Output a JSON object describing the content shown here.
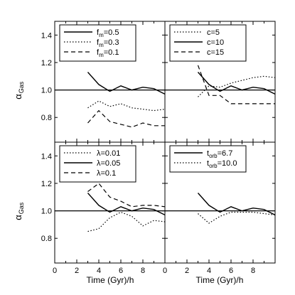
{
  "chart_data": {
    "type": "line",
    "shared_x_axis": {
      "label": "Time (Gyr)/h",
      "xlim": [
        0,
        10
      ],
      "ticks": [
        0,
        2,
        4,
        6,
        8
      ],
      "tick_labels": [
        "0",
        "2",
        "4",
        "6",
        "8"
      ]
    },
    "shared_y_axis": {
      "label_main": "α",
      "label_sub": "Gas",
      "ylim": [
        0.62,
        1.5
      ],
      "ticks": [
        0.8,
        1.0,
        1.2,
        1.4
      ],
      "tick_labels": [
        "0.8",
        "1.0",
        "1.2",
        "1.4"
      ]
    },
    "reference_line_y": 1.0,
    "panels": [
      {
        "position": "top-left",
        "series": [
          {
            "name": "f_m=0.5",
            "label_main": "f",
            "label_sub": "m",
            "label_rest": "=0.5",
            "style": "solid",
            "x": [
              3,
              4,
              5,
              6,
              7,
              8,
              9,
              10
            ],
            "y": [
              1.13,
              1.04,
              0.99,
              1.03,
              1.0,
              1.02,
              1.01,
              0.97
            ]
          },
          {
            "name": "f_m=0.3",
            "label_main": "f",
            "label_sub": "m",
            "label_rest": "=0.3",
            "style": "dotted",
            "x": [
              3,
              4,
              5,
              6,
              7,
              8,
              9,
              10
            ],
            "y": [
              0.87,
              0.92,
              0.88,
              0.9,
              0.87,
              0.86,
              0.85,
              0.86
            ]
          },
          {
            "name": "f_m=0.1",
            "label_main": "f",
            "label_sub": "m",
            "label_rest": "=0.1",
            "style": "dashed",
            "x": [
              3,
              4,
              5,
              6,
              7,
              8,
              9,
              10
            ],
            "y": [
              0.76,
              0.85,
              0.77,
              0.75,
              0.73,
              0.76,
              0.74,
              0.74
            ]
          }
        ]
      },
      {
        "position": "top-right",
        "series": [
          {
            "name": "c=5",
            "label_main": "c=5",
            "label_sub": "",
            "label_rest": "",
            "style": "dotted",
            "x": [
              3,
              4,
              5,
              6,
              7,
              8,
              9,
              10
            ],
            "y": [
              0.95,
              1.03,
              1.02,
              1.05,
              1.07,
              1.09,
              1.1,
              1.09
            ]
          },
          {
            "name": "c=10",
            "label_main": "c=10",
            "label_sub": "",
            "label_rest": "",
            "style": "solid",
            "x": [
              3,
              4,
              5,
              6,
              7,
              8,
              9,
              10
            ],
            "y": [
              1.13,
              1.04,
              0.99,
              1.03,
              1.0,
              1.02,
              1.01,
              0.97
            ]
          },
          {
            "name": "c=15",
            "label_main": "c=15",
            "label_sub": "",
            "label_rest": "",
            "style": "dashed",
            "x": [
              3,
              4,
              5,
              6,
              7,
              8,
              9,
              10
            ],
            "y": [
              1.18,
              0.96,
              0.96,
              0.9,
              0.9,
              0.9,
              0.9,
              0.9
            ]
          }
        ]
      },
      {
        "position": "bottom-left",
        "series": [
          {
            "name": "λ=0.01",
            "label_main": "λ=0.01",
            "label_sub": "",
            "label_rest": "",
            "style": "dotted",
            "x": [
              3,
              4,
              5,
              6,
              7,
              8,
              9,
              10
            ],
            "y": [
              0.85,
              0.87,
              0.95,
              0.99,
              0.96,
              0.89,
              0.93,
              0.92
            ]
          },
          {
            "name": "λ=0.05",
            "label_main": "λ=0.05",
            "label_sub": "",
            "label_rest": "",
            "style": "solid",
            "x": [
              3,
              4,
              5,
              6,
              7,
              8,
              9,
              10
            ],
            "y": [
              1.13,
              1.04,
              0.99,
              1.03,
              1.0,
              1.02,
              1.01,
              0.97
            ]
          },
          {
            "name": "λ=0.1",
            "label_main": "λ=0.1",
            "label_sub": "",
            "label_rest": "",
            "style": "dashed",
            "x": [
              3,
              4,
              5,
              6,
              7,
              8,
              9,
              10
            ],
            "y": [
              1.14,
              1.2,
              1.1,
              1.07,
              1.03,
              1.04,
              1.04,
              1.03
            ]
          }
        ]
      },
      {
        "position": "bottom-right",
        "series": [
          {
            "name": "t_orb=6.7",
            "label_main": "t",
            "label_sub": "orb",
            "label_rest": "=6.7",
            "style": "solid",
            "x": [
              3,
              4,
              5,
              6,
              7,
              8,
              9,
              10
            ],
            "y": [
              1.13,
              1.04,
              0.99,
              1.03,
              1.0,
              1.02,
              1.01,
              0.97
            ]
          },
          {
            "name": "t_orb=10.0",
            "label_main": "t",
            "label_sub": "orb",
            "label_rest": "=10.0",
            "style": "dotted",
            "x": [
              3,
              4,
              5,
              6,
              7,
              8,
              9,
              10
            ],
            "y": [
              0.98,
              0.91,
              0.96,
              0.99,
              0.99,
              0.99,
              0.98,
              0.97
            ]
          }
        ]
      }
    ]
  }
}
